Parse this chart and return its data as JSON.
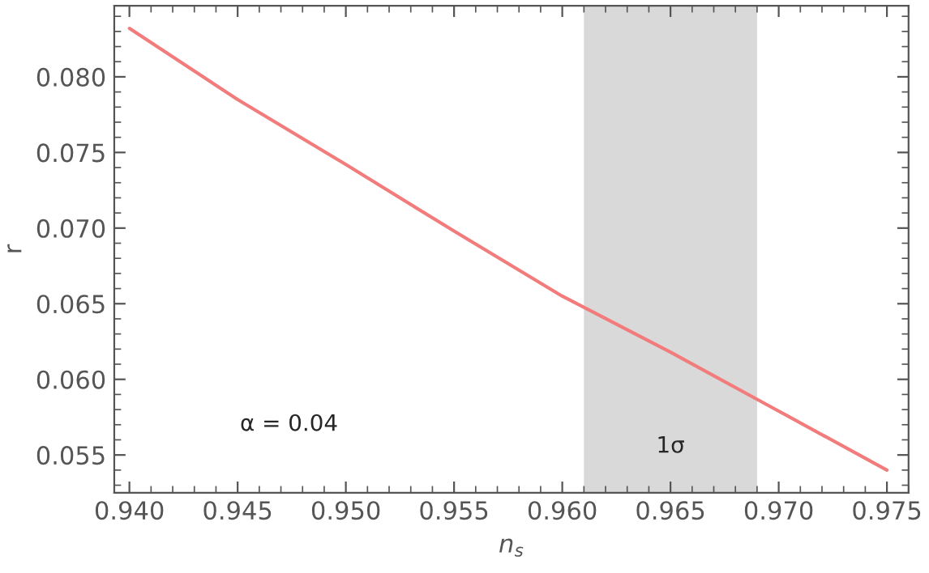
{
  "chart_data": {
    "type": "line",
    "xlabel": "n$_{s}$",
    "ylabel": "r",
    "x": [
      0.94,
      0.945,
      0.95,
      0.955,
      0.96,
      0.965,
      0.97,
      0.975
    ],
    "series": [
      {
        "color": "#f27c7c",
        "values": [
          0.0832,
          0.0785,
          0.0742,
          0.0698,
          0.0655,
          0.0618,
          0.0579,
          0.054
        ]
      }
    ],
    "xlim": [
      0.9393,
      0.976
    ],
    "ylim": [
      0.0525,
      0.0847
    ],
    "xticks": [
      {
        "value": 0.94,
        "label": "0.940"
      },
      {
        "value": 0.945,
        "label": "0.945"
      },
      {
        "value": 0.95,
        "label": "0.950"
      },
      {
        "value": 0.955,
        "label": "0.955"
      },
      {
        "value": 0.96,
        "label": "0.960"
      },
      {
        "value": 0.965,
        "label": "0.965"
      },
      {
        "value": 0.97,
        "label": "0.970"
      },
      {
        "value": 0.975,
        "label": "0.975"
      }
    ],
    "yticks": [
      {
        "value": 0.055,
        "label": "0.055"
      },
      {
        "value": 0.06,
        "label": "0.060"
      },
      {
        "value": 0.065,
        "label": "0.065"
      },
      {
        "value": 0.07,
        "label": "0.070"
      },
      {
        "value": 0.075,
        "label": "0.075"
      },
      {
        "value": 0.08,
        "label": "0.080"
      }
    ],
    "bands": [
      {
        "axis": "x",
        "from": 0.961,
        "to": 0.969,
        "label": "1σ",
        "color": "#d9d9d9"
      }
    ],
    "annotations": [
      "α = 0.04"
    ],
    "grid": false,
    "line_style": "solid",
    "marker": "none"
  }
}
